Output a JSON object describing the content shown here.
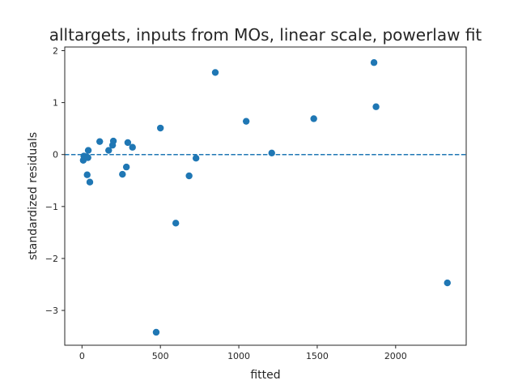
{
  "chart_data": {
    "type": "scatter",
    "title": "alltargets, inputs from MOs, linear scale, powerlaw fit",
    "xlabel": "fitted",
    "ylabel": "standardized residuals",
    "xlim": [
      -110,
      2450
    ],
    "ylim": [
      -3.67,
      2.07
    ],
    "xticks": [
      0,
      500,
      1000,
      1500,
      2000
    ],
    "yticks": [
      -3,
      -2,
      -1,
      0,
      1,
      2
    ],
    "xtick_labels": [
      "0",
      "500",
      "1000",
      "1500",
      "2000"
    ],
    "ytick_labels": [
      "−3",
      "−2",
      "−1",
      "0",
      "1",
      "2"
    ],
    "reference_line": {
      "y": 0,
      "style": "dashed"
    },
    "grid": false,
    "colors": {
      "points": "#1f77b4",
      "reference_line": "#1f77b4",
      "axes": "#262626"
    },
    "points": [
      {
        "x": 8,
        "y": -0.11
      },
      {
        "x": 12,
        "y": -0.03
      },
      {
        "x": 20,
        "y": -0.05
      },
      {
        "x": 28,
        "y": -0.04
      },
      {
        "x": 33,
        "y": -0.39
      },
      {
        "x": 40,
        "y": 0.08
      },
      {
        "x": 38,
        "y": -0.06
      },
      {
        "x": 50,
        "y": -0.53
      },
      {
        "x": 113,
        "y": 0.25
      },
      {
        "x": 170,
        "y": 0.08
      },
      {
        "x": 195,
        "y": 0.18
      },
      {
        "x": 200,
        "y": 0.26
      },
      {
        "x": 258,
        "y": -0.38
      },
      {
        "x": 283,
        "y": -0.24
      },
      {
        "x": 292,
        "y": 0.23
      },
      {
        "x": 322,
        "y": 0.14
      },
      {
        "x": 473,
        "y": -3.42
      },
      {
        "x": 500,
        "y": 0.51
      },
      {
        "x": 598,
        "y": -1.32
      },
      {
        "x": 683,
        "y": -0.41
      },
      {
        "x": 727,
        "y": -0.07
      },
      {
        "x": 850,
        "y": 1.58
      },
      {
        "x": 1047,
        "y": 0.64
      },
      {
        "x": 1210,
        "y": 0.03
      },
      {
        "x": 1478,
        "y": 0.69
      },
      {
        "x": 1862,
        "y": 1.77
      },
      {
        "x": 1875,
        "y": 0.92
      },
      {
        "x": 2330,
        "y": -2.47
      }
    ]
  }
}
